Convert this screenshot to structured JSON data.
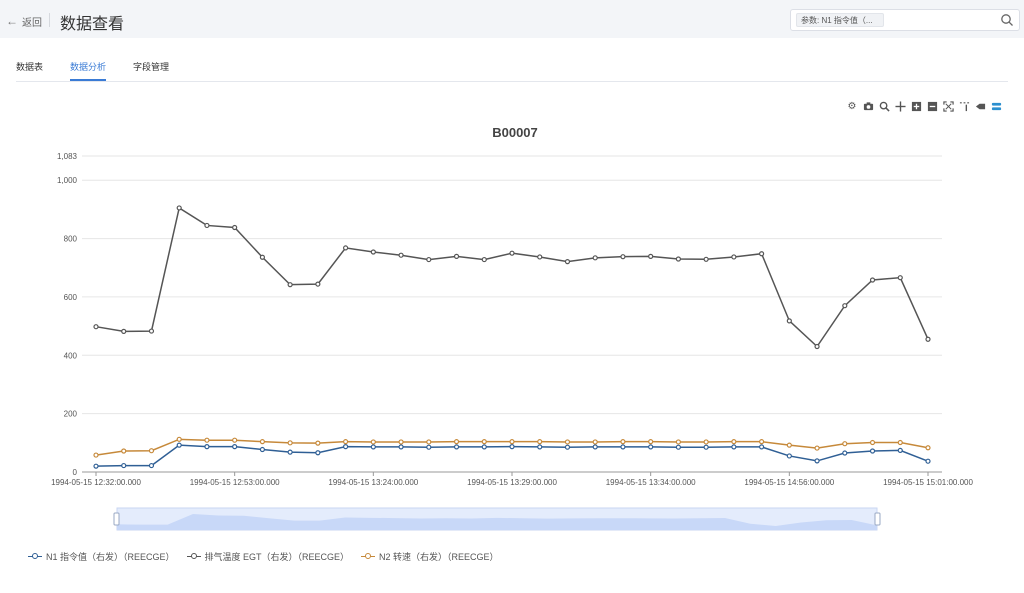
{
  "header": {
    "back_label": "返回",
    "title": "数据查看",
    "search": {
      "tag_label": "参数: N1 指令值（...",
      "value": "",
      "placeholder": ""
    }
  },
  "tabs": [
    {
      "label": "数据表",
      "active": false
    },
    {
      "label": "数据分析",
      "active": true
    },
    {
      "label": "字段管理",
      "active": false
    }
  ],
  "toolbox": {
    "icons": [
      "gear-icon",
      "camera-icon",
      "zoom-icon",
      "pan-icon",
      "zoom-in-icon",
      "zoom-out-icon",
      "autoscale-icon",
      "reset-axes-icon",
      "spike-lines-icon",
      "compare-hover-icon"
    ]
  },
  "chart_data": {
    "type": "line",
    "title": "B00007",
    "xlabel": "",
    "ylabel": "",
    "ylim": [
      0,
      1083
    ],
    "y_ticks": [
      "0",
      "200",
      "400",
      "600",
      "800",
      "1,000",
      "1,083"
    ],
    "y_tick_values": [
      0,
      200,
      400,
      600,
      800,
      1000,
      1083
    ],
    "x_tick_labels": [
      "1994-05-15 12:32:00.000",
      "1994-05-15 12:53:00.000",
      "1994-05-15 13:24:00.000",
      "1994-05-15 13:29:00.000",
      "1994-05-15 13:34:00.000",
      "1994-05-15 14:56:00.000",
      "1994-05-15 15:01:00.000"
    ],
    "x_tick_index": [
      0,
      5,
      10,
      15,
      20,
      25,
      30
    ],
    "grid": true,
    "legend_position": "bottom-left",
    "series": [
      {
        "name": "N1 指令值（右发）（REECGE）",
        "color": "#2f5f95",
        "values": [
          20,
          22,
          22,
          92,
          87,
          87,
          77,
          68,
          66,
          87,
          86,
          86,
          85,
          86,
          86,
          87,
          86,
          85,
          86,
          86,
          86,
          85,
          85,
          86,
          86,
          55,
          38,
          65,
          72,
          74,
          37
        ]
      },
      {
        "name": "排气温度 EGT（右发）（REECGE）",
        "color": "#555555",
        "values": [
          498,
          482,
          483,
          905,
          845,
          838,
          736,
          642,
          644,
          768,
          754,
          743,
          728,
          739,
          728,
          750,
          737,
          721,
          734,
          738,
          739,
          730,
          729,
          737,
          748,
          518,
          430,
          570,
          658,
          666,
          455
        ]
      },
      {
        "name": "N2 转速（右发）（REECGE）",
        "color": "#c6893a",
        "values": [
          58,
          72,
          73,
          112,
          109,
          109,
          104,
          100,
          99,
          104,
          103,
          103,
          103,
          104,
          104,
          104,
          104,
          103,
          103,
          104,
          104,
          103,
          103,
          104,
          104,
          92,
          82,
          97,
          101,
          101,
          83
        ]
      }
    ]
  },
  "legend": [
    {
      "label": "N1 指令值（右发）（REECGE）",
      "color": "#2f5f95"
    },
    {
      "label": "排气温度 EGT（右发）（REECGE）",
      "color": "#555555"
    },
    {
      "label": "N2 转速（右发）（REECGE）",
      "color": "#c6893a"
    }
  ]
}
